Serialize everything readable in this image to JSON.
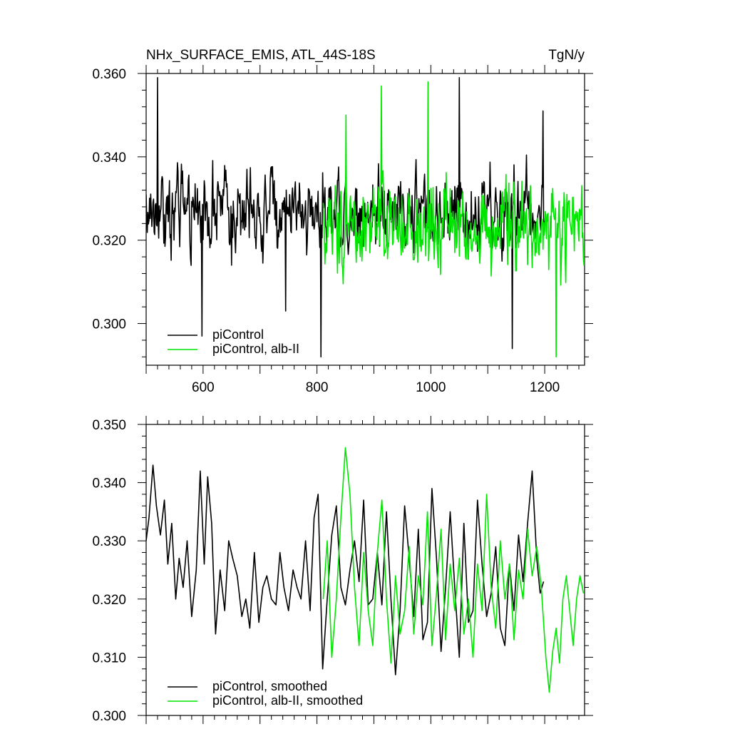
{
  "chart_data": [
    {
      "type": "line",
      "title": "NHx_SURFACE_EMIS, ATL_44S-18S",
      "units": "TgN/y",
      "xlabel": "",
      "ylabel": "",
      "xlim": [
        500,
        1270
      ],
      "ylim": [
        0.29,
        0.36
      ],
      "x_ticks": [
        600,
        800,
        1000,
        1200
      ],
      "x_tick_labels": [
        "600",
        "800",
        "1000",
        "1200"
      ],
      "y_ticks": [
        0.3,
        0.32,
        0.34,
        0.36
      ],
      "y_tick_labels": [
        "0.300",
        "0.320",
        "0.340",
        "0.360"
      ],
      "grid": false,
      "legend_position": "bottom-left",
      "series": [
        {
          "name": "piControl",
          "color": "#000000",
          "x_range": [
            500,
            1200
          ],
          "mean": 0.327,
          "amplitude": 0.011,
          "samples": [
            {
              "x": 520,
              "y": 0.359
            },
            {
              "x": 598,
              "y": 0.297
            },
            {
              "x": 650,
              "y": 0.314
            },
            {
              "x": 745,
              "y": 0.303
            },
            {
              "x": 807,
              "y": 0.292
            },
            {
              "x": 1050,
              "y": 0.359
            },
            {
              "x": 1143,
              "y": 0.294
            },
            {
              "x": 1197,
              "y": 0.351
            }
          ]
        },
        {
          "name": "piControl, alb-II",
          "color": "#00e600",
          "x_range": [
            811,
            1270
          ],
          "mean": 0.323,
          "amplitude": 0.012,
          "samples": [
            {
              "x": 851,
              "y": 0.35
            },
            {
              "x": 913,
              "y": 0.357
            },
            {
              "x": 995,
              "y": 0.358
            },
            {
              "x": 1220,
              "y": 0.292
            }
          ]
        }
      ]
    },
    {
      "type": "line",
      "title": "",
      "xlabel": "",
      "ylabel": "",
      "xlim": [
        500,
        1270
      ],
      "ylim": [
        0.3,
        0.35
      ],
      "y_ticks": [
        0.3,
        0.31,
        0.32,
        0.33,
        0.34,
        0.35
      ],
      "y_tick_labels": [
        "0.300",
        "0.310",
        "0.320",
        "0.330",
        "0.340",
        "0.350"
      ],
      "grid": false,
      "legend_position": "bottom-left",
      "series": [
        {
          "name": "piControl, smoothed",
          "color": "#000000",
          "x": [
            500,
            505,
            512,
            518,
            525,
            532,
            538,
            545,
            552,
            558,
            565,
            572,
            580,
            588,
            595,
            602,
            608,
            615,
            622,
            630,
            638,
            645,
            652,
            660,
            668,
            675,
            682,
            690,
            698,
            705,
            712,
            720,
            728,
            735,
            742,
            750,
            758,
            765,
            772,
            780,
            788,
            795,
            802,
            810,
            818,
            826,
            834,
            842,
            850,
            858,
            866,
            874,
            882,
            890,
            898,
            906,
            914,
            922,
            930,
            938,
            946,
            954,
            962,
            970,
            978,
            986,
            994,
            1002,
            1010,
            1018,
            1026,
            1034,
            1042,
            1050,
            1058,
            1066,
            1074,
            1082,
            1090,
            1098,
            1106,
            1114,
            1122,
            1130,
            1138,
            1146,
            1154,
            1162,
            1170,
            1178,
            1186,
            1192,
            1198
          ],
          "y": [
            0.33,
            0.334,
            0.343,
            0.336,
            0.331,
            0.337,
            0.326,
            0.333,
            0.32,
            0.327,
            0.322,
            0.33,
            0.317,
            0.325,
            0.342,
            0.326,
            0.341,
            0.333,
            0.314,
            0.325,
            0.318,
            0.33,
            0.327,
            0.324,
            0.317,
            0.32,
            0.315,
            0.328,
            0.316,
            0.322,
            0.324,
            0.32,
            0.319,
            0.328,
            0.322,
            0.318,
            0.325,
            0.322,
            0.32,
            0.33,
            0.318,
            0.334,
            0.338,
            0.308,
            0.32,
            0.331,
            0.336,
            0.322,
            0.319,
            0.325,
            0.33,
            0.323,
            0.337,
            0.319,
            0.32,
            0.328,
            0.319,
            0.335,
            0.32,
            0.307,
            0.318,
            0.336,
            0.327,
            0.317,
            0.332,
            0.313,
            0.316,
            0.339,
            0.327,
            0.311,
            0.322,
            0.335,
            0.322,
            0.31,
            0.333,
            0.316,
            0.318,
            0.337,
            0.326,
            0.317,
            0.321,
            0.329,
            0.315,
            0.312,
            0.326,
            0.318,
            0.331,
            0.323,
            0.333,
            0.342,
            0.327,
            0.321,
            0.323
          ]
        },
        {
          "name": "piControl, alb-II, smoothed",
          "color": "#00e600",
          "x": [
            811,
            818,
            826,
            834,
            842,
            850,
            858,
            866,
            874,
            882,
            890,
            898,
            906,
            914,
            922,
            930,
            938,
            946,
            954,
            962,
            970,
            978,
            986,
            994,
            1002,
            1010,
            1018,
            1026,
            1034,
            1042,
            1050,
            1058,
            1066,
            1074,
            1082,
            1090,
            1098,
            1106,
            1114,
            1122,
            1130,
            1138,
            1146,
            1154,
            1162,
            1170,
            1178,
            1186,
            1194,
            1202,
            1208,
            1214,
            1220,
            1226,
            1232,
            1238,
            1244,
            1250,
            1256,
            1262,
            1268
          ],
          "y": [
            0.32,
            0.33,
            0.31,
            0.32,
            0.334,
            0.346,
            0.338,
            0.322,
            0.312,
            0.328,
            0.318,
            0.312,
            0.328,
            0.337,
            0.32,
            0.309,
            0.324,
            0.314,
            0.318,
            0.329,
            0.314,
            0.324,
            0.319,
            0.335,
            0.312,
            0.321,
            0.332,
            0.313,
            0.326,
            0.318,
            0.327,
            0.314,
            0.32,
            0.31,
            0.326,
            0.318,
            0.338,
            0.322,
            0.315,
            0.33,
            0.32,
            0.326,
            0.313,
            0.325,
            0.32,
            0.332,
            0.324,
            0.329,
            0.322,
            0.31,
            0.304,
            0.311,
            0.315,
            0.309,
            0.32,
            0.324,
            0.318,
            0.312,
            0.32,
            0.324,
            0.321
          ]
        }
      ]
    }
  ]
}
